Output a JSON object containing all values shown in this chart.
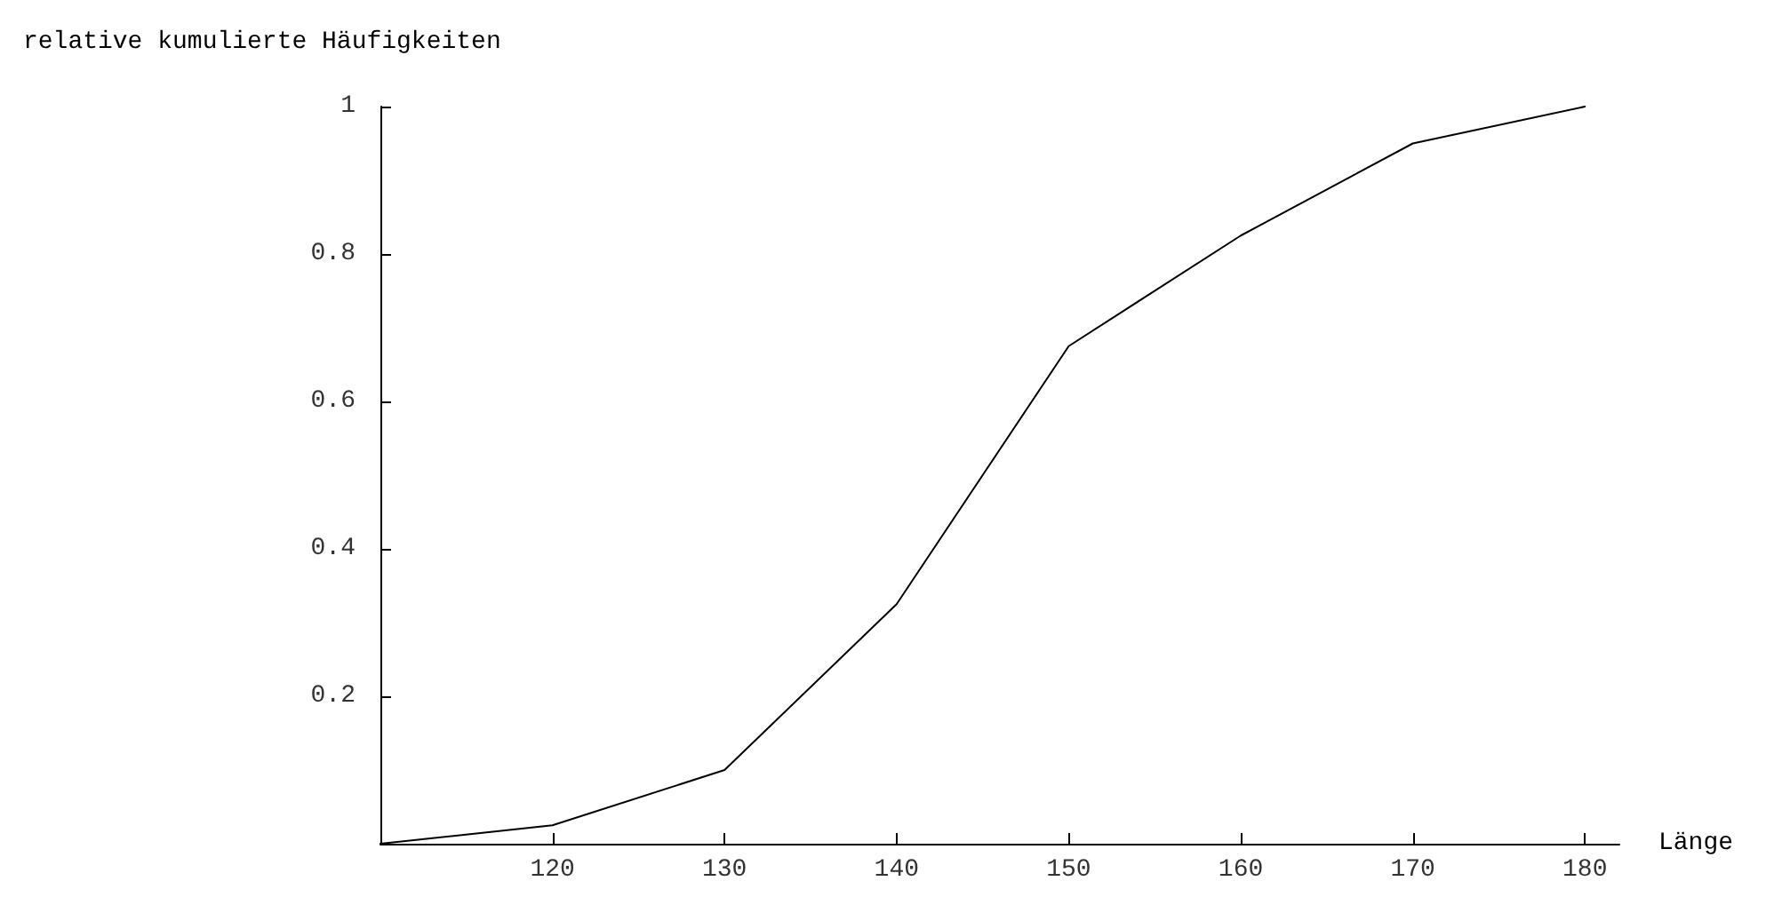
{
  "chart_data": {
    "type": "line",
    "ylabel": "relative kumulierte Häufigkeiten",
    "xlabel": "Länge",
    "x": [
      110,
      120,
      130,
      140,
      150,
      160,
      170,
      180
    ],
    "series": [
      {
        "color": "#000000",
        "values": [
          0,
          0.025,
          0.1,
          0.325,
          0.675,
          0.825,
          0.95,
          1
        ]
      }
    ],
    "xlim": [
      110,
      182
    ],
    "xticks": [
      120,
      130,
      140,
      150,
      160,
      170,
      180
    ],
    "ylim": [
      0,
      1
    ],
    "yticks": [
      0.2,
      0.4,
      0.6,
      0.8,
      1
    ],
    "grid": false,
    "marker": "none",
    "line_style": "solid"
  }
}
